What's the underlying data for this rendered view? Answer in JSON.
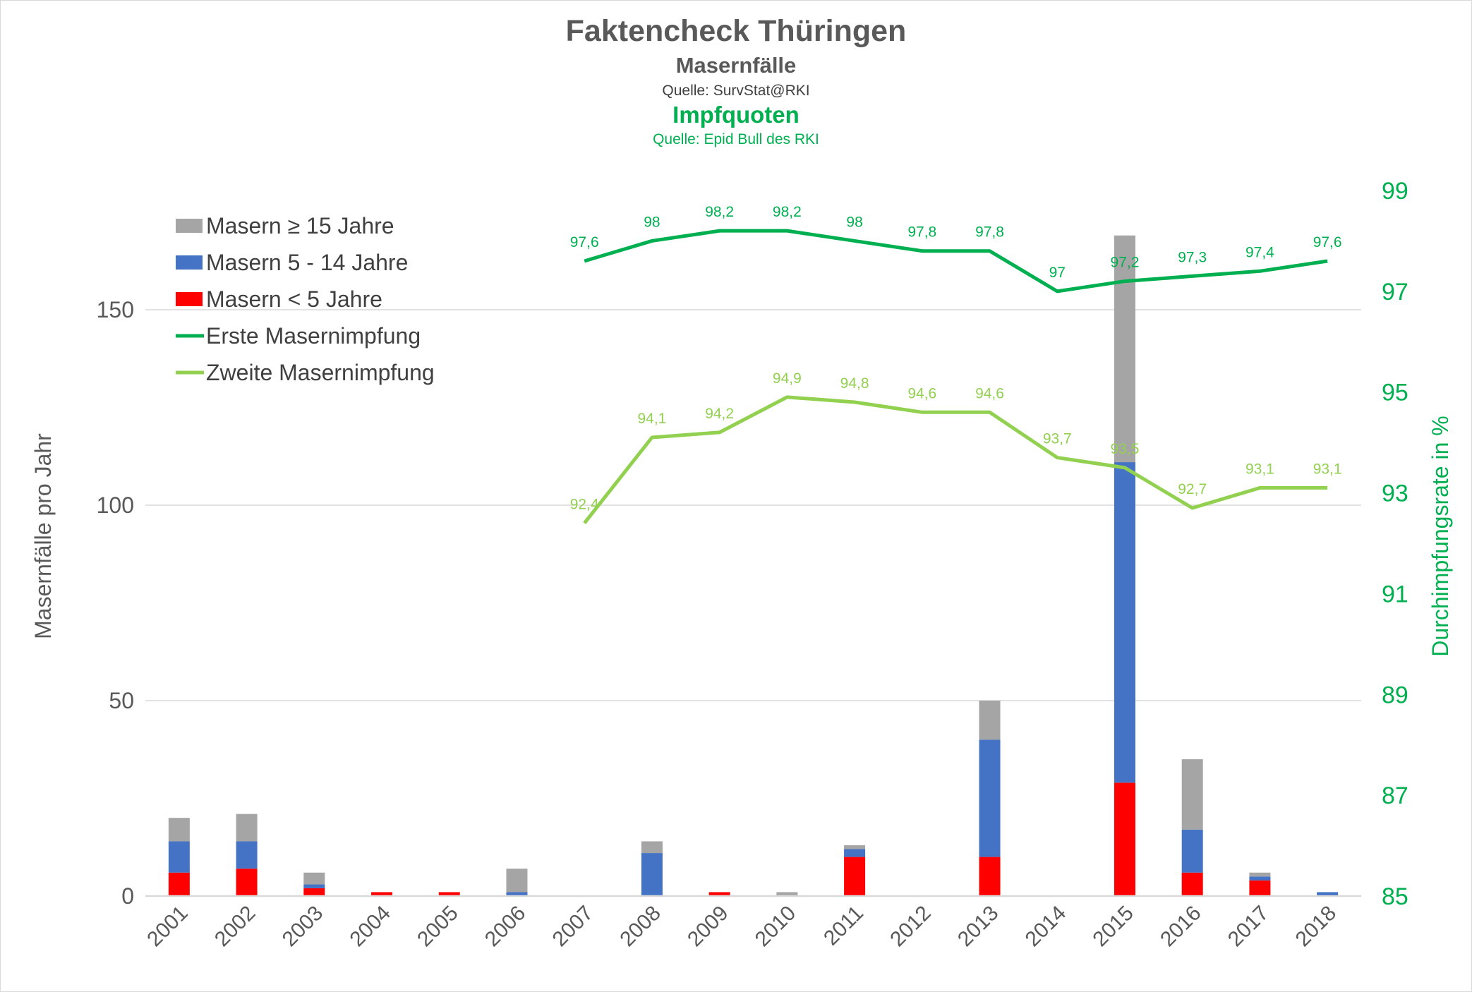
{
  "chart_data": {
    "type": "bar+line",
    "title": "Faktencheck Thüringen",
    "subtitle1": "Masernfälle",
    "source1": "Quelle: SurvStat@RKI",
    "subtitle2": "Impfquoten",
    "source2": "Quelle: Epid Bull des RKI",
    "ylabel": "Masernfälle pro Jahr",
    "y2label": "Durchimpfungsrate in %",
    "ylim": [
      0,
      180
    ],
    "yticks": [
      0,
      50,
      100,
      150
    ],
    "y2lim": [
      85,
      99
    ],
    "y2ticks": [
      85,
      87,
      89,
      91,
      93,
      95,
      97,
      99
    ],
    "grid": true,
    "legend_position": "top-left",
    "categories": [
      "2001",
      "2002",
      "2003",
      "2004",
      "2005",
      "2006",
      "2007",
      "2008",
      "2009",
      "2010",
      "2011",
      "2012",
      "2013",
      "2014",
      "2015",
      "2016",
      "2017",
      "2018"
    ],
    "bar_series": [
      {
        "name": "Masern < 5 Jahre",
        "color": "#FF0000",
        "values": [
          6,
          7,
          2,
          1,
          1,
          0,
          0,
          0,
          1,
          0,
          10,
          0,
          10,
          0,
          29,
          6,
          4,
          0
        ]
      },
      {
        "name": "Masern 5 - 14 Jahre",
        "color": "#4472C4",
        "values": [
          8,
          7,
          1,
          0,
          0,
          1,
          0,
          11,
          0,
          0,
          2,
          0,
          30,
          0,
          82,
          11,
          1,
          1
        ]
      },
      {
        "name": "Masern ≥ 15 Jahre",
        "color": "#A5A5A5",
        "values": [
          6,
          7,
          3,
          0,
          0,
          6,
          0,
          3,
          0,
          1,
          1,
          0,
          10,
          0,
          58,
          18,
          1,
          0
        ]
      }
    ],
    "line_series": [
      {
        "name": "Erste Masernimpfung",
        "color": "#00B050",
        "values": [
          null,
          null,
          null,
          null,
          null,
          null,
          97.6,
          98,
          98.2,
          98.2,
          98,
          97.8,
          97.8,
          97,
          97.2,
          97.3,
          97.4,
          97.6
        ],
        "labels": [
          "",
          "",
          "",
          "",
          "",
          "",
          "97,6",
          "98",
          "98,2",
          "98,2",
          "98",
          "97,8",
          "97,8",
          "97",
          "97,2",
          "97,3",
          "97,4",
          "97,6"
        ]
      },
      {
        "name": "Zweite Masernimpfung",
        "color": "#92D050",
        "values": [
          null,
          null,
          null,
          null,
          null,
          null,
          92.4,
          94.1,
          94.2,
          94.9,
          94.8,
          94.6,
          94.6,
          93.7,
          93.5,
          92.7,
          93.1,
          93.1
        ],
        "labels": [
          "",
          "",
          "",
          "",
          "",
          "",
          "92,4",
          "94,1",
          "94,2",
          "94,9",
          "94,8",
          "94,6",
          "94,6",
          "93,7",
          "93,5",
          "92,7",
          "93,1",
          "93,1"
        ]
      }
    ],
    "legend_order": [
      "Masern ≥ 15 Jahre",
      "Masern 5 - 14 Jahre",
      "Masern < 5 Jahre",
      "Erste Masernimpfung",
      "Zweite Masernimpfung"
    ]
  }
}
